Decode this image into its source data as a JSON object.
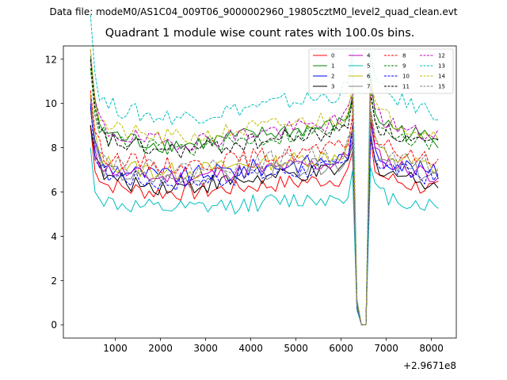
{
  "suptitle": "Data file: modeM0/AS1C04_009T06_9000002960_19805cztM0_level2_quad_clean.evt",
  "chart_data": {
    "type": "line",
    "title": "Quadrant 1 module wise count rates with 100.0s bins.",
    "xlabel": "",
    "ylabel": "",
    "offset_label": "+2.9671e8",
    "xlim": [
      -150,
      8550
    ],
    "ylim": [
      -0.6,
      12.6
    ],
    "xticks": [
      1000,
      2000,
      3000,
      4000,
      5000,
      6000,
      7000,
      8000
    ],
    "yticks": [
      0,
      2,
      4,
      6,
      8,
      10,
      12
    ],
    "grid": false,
    "legend": {
      "placement": "top-right",
      "columns": 4
    },
    "profile": {
      "x": [
        450,
        550,
        650,
        750,
        850,
        950,
        1050,
        1150,
        1250,
        1350,
        1450,
        1550,
        1650,
        1750,
        1850,
        1950,
        2050,
        2150,
        2250,
        2350,
        2450,
        2550,
        2650,
        2750,
        2850,
        2950,
        3050,
        3150,
        3250,
        3350,
        3450,
        3550,
        3650,
        3750,
        3850,
        3950,
        4050,
        4150,
        4250,
        4350,
        4450,
        4550,
        4650,
        4750,
        4850,
        4950,
        5050,
        5150,
        5250,
        5350,
        5450,
        5550,
        5650,
        5750,
        5850,
        5950,
        6050,
        6150,
        6250,
        6350,
        6450,
        6550,
        6650,
        6750,
        6850,
        6950,
        7050,
        7150,
        7250,
        7350,
        7450,
        7550,
        7650,
        7750,
        7850,
        7950,
        8050,
        8150
      ],
      "shape": [
        1.42,
        1.15,
        1.06,
        1.02,
        1.0,
        1.0,
        0.99,
        0.98,
        0.98,
        0.97,
        0.97,
        0.96,
        0.96,
        0.96,
        0.95,
        0.95,
        0.95,
        0.95,
        0.95,
        0.95,
        0.95,
        0.95,
        0.95,
        0.95,
        0.96,
        0.96,
        0.96,
        0.97,
        0.97,
        0.97,
        0.98,
        0.98,
        0.98,
        0.99,
        0.99,
        0.99,
        1.0,
        1.0,
        1.0,
        1.0,
        1.01,
        1.01,
        1.01,
        1.02,
        1.02,
        1.02,
        1.02,
        1.03,
        1.03,
        1.03,
        1.03,
        1.04,
        1.04,
        1.04,
        1.05,
        1.05,
        1.07,
        1.1,
        1.22,
        0.12,
        0.0,
        0.0,
        1.28,
        1.12,
        1.08,
        1.06,
        1.05,
        1.04,
        1.03,
        1.02,
        1.01,
        1.0,
        1.0,
        0.99,
        0.99,
        0.98,
        0.97,
        0.97
      ]
    },
    "series": [
      {
        "name": "0",
        "color": "#ff0000",
        "dash": "solid",
        "base": 6.3
      },
      {
        "name": "1",
        "color": "#008000",
        "dash": "solid",
        "base": 8.6
      },
      {
        "name": "2",
        "color": "#0000ff",
        "dash": "solid",
        "base": 7.1
      },
      {
        "name": "3",
        "color": "#000000",
        "dash": "solid",
        "base": 6.6
      },
      {
        "name": "4",
        "color": "#bf00bf",
        "dash": "solid",
        "base": 7.0
      },
      {
        "name": "5",
        "color": "#00bfbf",
        "dash": "solid",
        "base": 5.5
      },
      {
        "name": "6",
        "color": "#bfbf00",
        "dash": "solid",
        "base": 7.3
      },
      {
        "name": "7",
        "color": "#808080",
        "dash": "solid",
        "base": 6.9
      },
      {
        "name": "8",
        "color": "#ff0000",
        "dash": "dashed",
        "base": 7.6
      },
      {
        "name": "9",
        "color": "#008000",
        "dash": "dashed",
        "base": 8.4
      },
      {
        "name": "10",
        "color": "#0000ff",
        "dash": "dashed",
        "base": 6.8
      },
      {
        "name": "11",
        "color": "#000000",
        "dash": "dashed",
        "base": 8.3
      },
      {
        "name": "12",
        "color": "#bf00bf",
        "dash": "dashed",
        "base": 8.7
      },
      {
        "name": "13",
        "color": "#00bfbf",
        "dash": "dashed",
        "base": 9.9
      },
      {
        "name": "14",
        "color": "#bfbf00",
        "dash": "dashed",
        "base": 8.9
      },
      {
        "name": "15",
        "color": "#808080",
        "dash": "dashed",
        "base": 7.4
      }
    ]
  }
}
